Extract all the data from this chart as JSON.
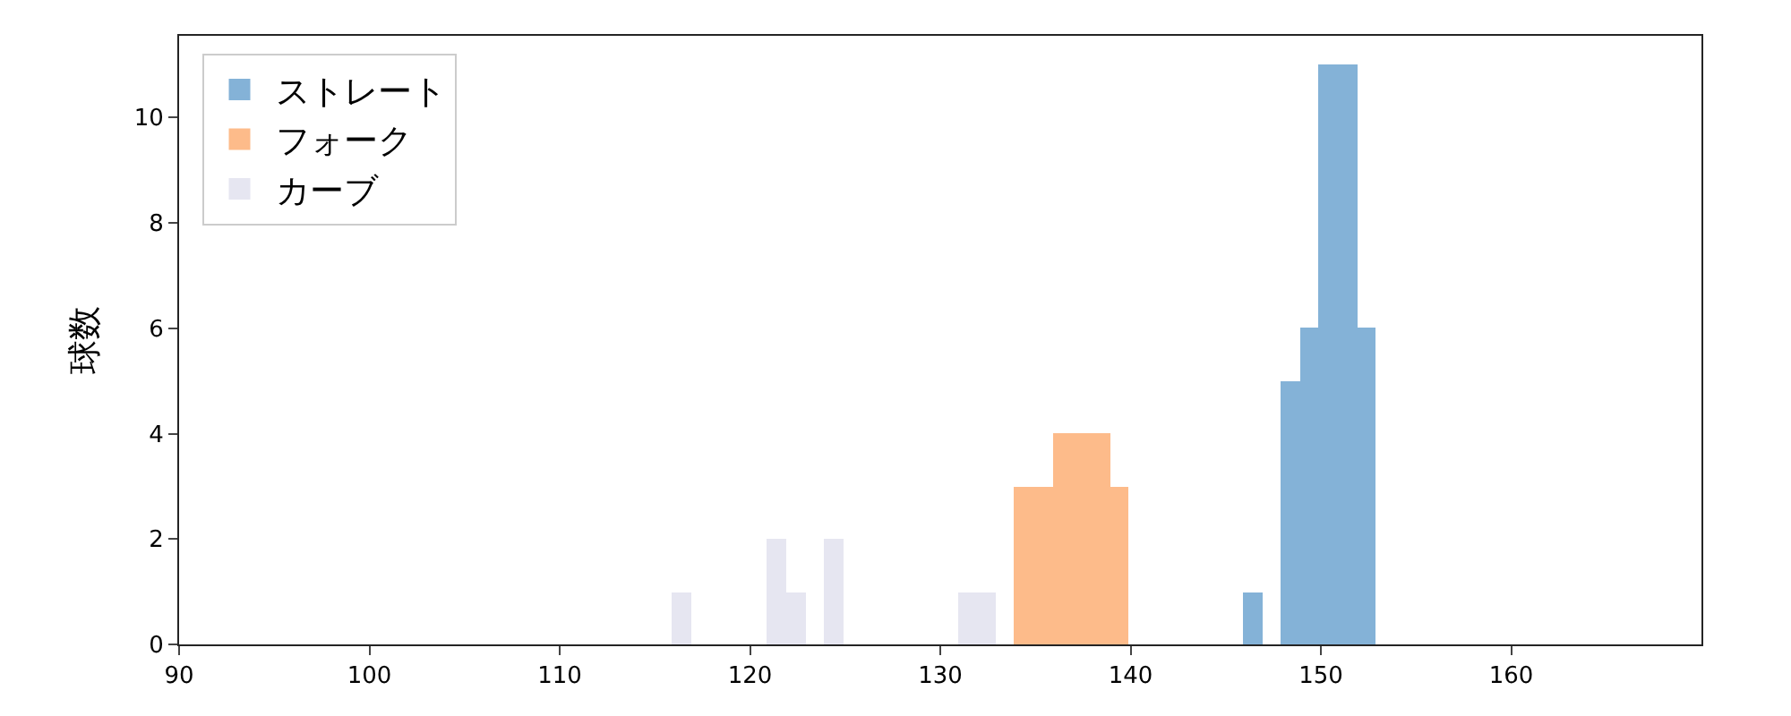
{
  "chart_data": {
    "type": "histogram",
    "ylabel": "球数",
    "xlim": [
      90,
      170
    ],
    "xticks": [
      90,
      100,
      110,
      120,
      130,
      140,
      150,
      160
    ],
    "ylim": [
      0,
      11.55
    ],
    "yticks": [
      0,
      2,
      4,
      6,
      8,
      10
    ],
    "grid": false,
    "legend": "top left",
    "bins": [
      115.9,
      116.9,
      117.9,
      118.9,
      119.9,
      120.9,
      121.9,
      122.9,
      123.9,
      124.9,
      125.9,
      126.9,
      127.9,
      128.9,
      129.9,
      130.9,
      131.9,
      132.9,
      133.9,
      134.9,
      135.9,
      136.9,
      137.9,
      138.9,
      139.9,
      140.9,
      141.9,
      142.9,
      143.9,
      144.9,
      145.9,
      146.9,
      147.9,
      148.9,
      149.9,
      150.9,
      151.9,
      152.9
    ],
    "series": [
      {
        "name": "ストレート",
        "color": "#84b2d7",
        "values": [
          0,
          0,
          0,
          0,
          0,
          0,
          0,
          0,
          0,
          0,
          0,
          0,
          0,
          0,
          0,
          0,
          0,
          0,
          0,
          0,
          0,
          0,
          0,
          0,
          0,
          0,
          0,
          0,
          0,
          0,
          1,
          0,
          5,
          6,
          11,
          11,
          6
        ]
      },
      {
        "name": "フォーク",
        "color": "#fdbb8a",
        "values": [
          0,
          0,
          0,
          0,
          0,
          0,
          0,
          0,
          0,
          0,
          0,
          0,
          0,
          0,
          0,
          0,
          0,
          0,
          3,
          3,
          4,
          4,
          4,
          3,
          0,
          0,
          0,
          0,
          0,
          0,
          0,
          0,
          0,
          0,
          0,
          0,
          0
        ]
      },
      {
        "name": "カーブ",
        "color": "#e6e6f1",
        "values": [
          1,
          0,
          0,
          0,
          0,
          2,
          1,
          0,
          2,
          0,
          0,
          0,
          0,
          0,
          0,
          1,
          1,
          0,
          0,
          0,
          0,
          0,
          0,
          0,
          0,
          0,
          0,
          0,
          0,
          0,
          0,
          0,
          0,
          0,
          0,
          0,
          0
        ]
      }
    ]
  }
}
